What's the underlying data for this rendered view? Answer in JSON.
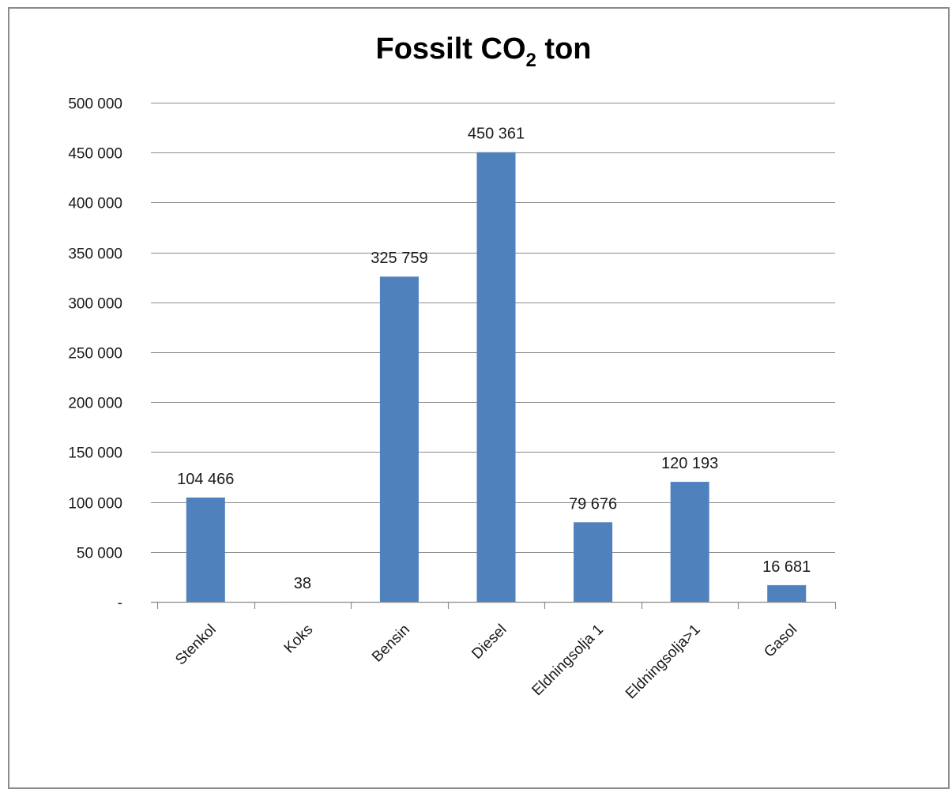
{
  "chart_data": {
    "type": "bar",
    "title": {
      "main": "Fossilt CO",
      "subscript": "2",
      "suffix": " ton"
    },
    "categories": [
      "Stenkol",
      "Koks",
      "Bensin",
      "Diesel",
      "Eldningsolja 1",
      "Eldningsolja>1",
      "Gasol"
    ],
    "values": [
      104466,
      38,
      325759,
      450361,
      79676,
      120193,
      16681
    ],
    "data_labels": [
      "104 466",
      "38",
      "325 759",
      "450 361",
      "79 676",
      "120 193",
      "16 681"
    ],
    "ylim": [
      0,
      500000
    ],
    "y_ticks": [
      0,
      50000,
      100000,
      150000,
      200000,
      250000,
      300000,
      350000,
      400000,
      450000,
      500000
    ],
    "y_tick_labels": [
      "-",
      "50 000",
      "100 000",
      "150 000",
      "200 000",
      "250 000",
      "300 000",
      "350 000",
      "400 000",
      "450 000",
      "500 000"
    ],
    "xlabel": "",
    "ylabel": "",
    "grid": true,
    "legend": "none",
    "bar_color": "#4f81bd"
  }
}
